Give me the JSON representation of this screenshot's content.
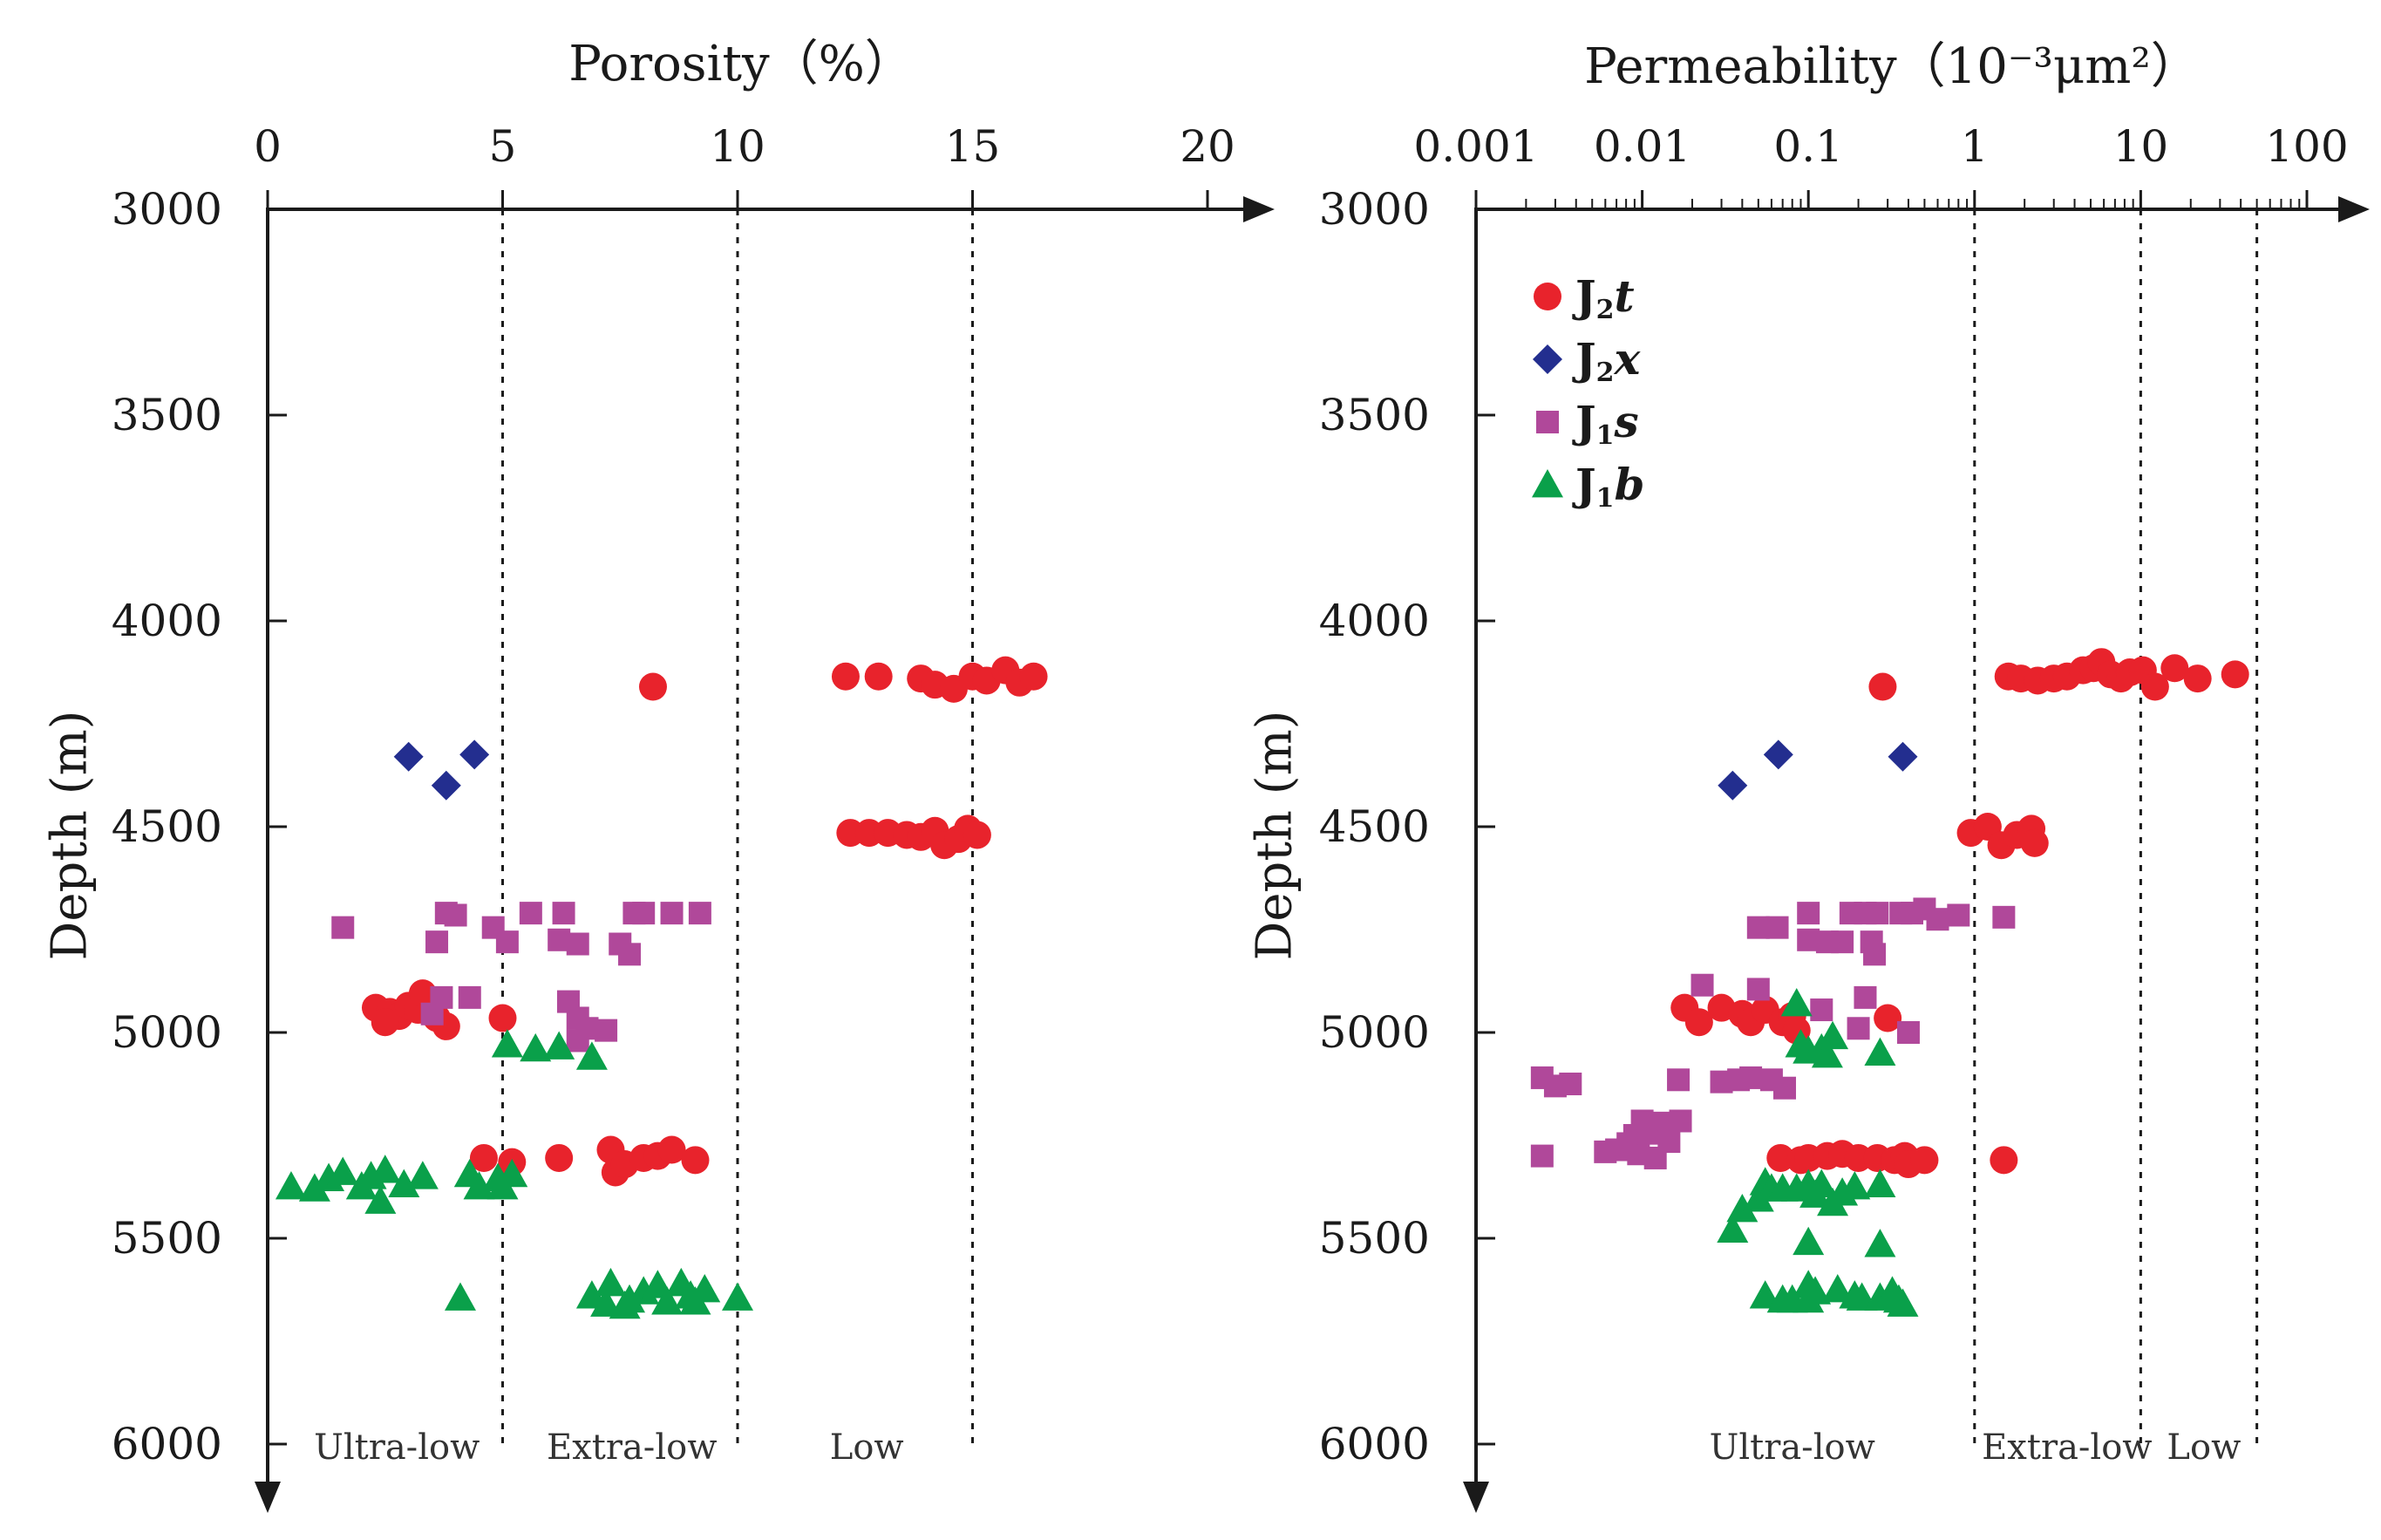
{
  "chart_data": [
    {
      "type": "scatter",
      "id": "porosity",
      "title": "Porosity（%）",
      "xlabel": "Porosity（%）",
      "ylabel": "Depth (m)",
      "xscale": "linear",
      "xlim": [
        0,
        20
      ],
      "ylim": [
        3000,
        6000
      ],
      "yaxis_inverted": true,
      "x_tick_labels": [
        "0",
        "5",
        "10",
        "15",
        "20"
      ],
      "y_tick_labels": [
        "3000",
        "3500",
        "4000",
        "4500",
        "5000",
        "5500",
        "6000"
      ],
      "x_ticks": [
        0,
        5,
        10,
        15,
        20
      ],
      "y_ticks": [
        3000,
        3500,
        4000,
        4500,
        5000,
        5500,
        6000
      ],
      "boundaries": [
        5,
        10,
        15
      ],
      "zones": [
        {
          "label": "Ultra-low",
          "x": 2.75
        },
        {
          "label": "Extra-low",
          "x": 7.75
        },
        {
          "label": "Low",
          "x": 12.75
        }
      ],
      "series": [
        {
          "name": "J2t",
          "marker": "circle",
          "color": "#e8232c",
          "points": [
            [
              8.2,
              4160
            ],
            [
              12.3,
              4135
            ],
            [
              13.0,
              4135
            ],
            [
              13.9,
              4140
            ],
            [
              14.2,
              4155
            ],
            [
              14.6,
              4165
            ],
            [
              15.0,
              4135
            ],
            [
              15.3,
              4145
            ],
            [
              15.7,
              4120
            ],
            [
              16.0,
              4150
            ],
            [
              16.3,
              4135
            ],
            [
              12.4,
              4515
            ],
            [
              12.8,
              4515
            ],
            [
              13.2,
              4515
            ],
            [
              13.6,
              4520
            ],
            [
              13.9,
              4525
            ],
            [
              14.2,
              4510
            ],
            [
              14.4,
              4545
            ],
            [
              14.7,
              4530
            ],
            [
              14.9,
              4505
            ],
            [
              15.1,
              4520
            ],
            [
              2.3,
              4940
            ],
            [
              2.6,
              4950
            ],
            [
              2.8,
              4960
            ],
            [
              3.0,
              4935
            ],
            [
              3.2,
              4945
            ],
            [
              3.3,
              4905
            ],
            [
              3.6,
              4965
            ],
            [
              3.8,
              4985
            ],
            [
              2.5,
              4975
            ],
            [
              5.0,
              4965
            ],
            [
              4.6,
              5305
            ],
            [
              5.2,
              5315
            ],
            [
              6.2,
              5305
            ],
            [
              7.3,
              5285
            ],
            [
              7.4,
              5340
            ],
            [
              7.6,
              5320
            ],
            [
              8.0,
              5305
            ],
            [
              8.3,
              5300
            ],
            [
              8.6,
              5285
            ],
            [
              9.1,
              5310
            ]
          ]
        },
        {
          "name": "J2x",
          "marker": "diamond",
          "color": "#232e8f",
          "points": [
            [
              3.0,
              4330
            ],
            [
              4.4,
              4325
            ],
            [
              3.8,
              4400
            ]
          ]
        },
        {
          "name": "J1s",
          "marker": "square",
          "color": "#b0489a",
          "points": [
            [
              1.6,
              4745
            ],
            [
              3.6,
              4780
            ],
            [
              3.8,
              4710
            ],
            [
              4.0,
              4715
            ],
            [
              4.8,
              4745
            ],
            [
              5.1,
              4780
            ],
            [
              5.6,
              4710
            ],
            [
              6.3,
              4710
            ],
            [
              6.2,
              4775
            ],
            [
              6.6,
              4785
            ],
            [
              7.5,
              4785
            ],
            [
              7.7,
              4810
            ],
            [
              7.8,
              4710
            ],
            [
              8.0,
              4710
            ],
            [
              8.6,
              4710
            ],
            [
              9.2,
              4710
            ],
            [
              3.7,
              4915
            ],
            [
              4.3,
              4915
            ],
            [
              6.4,
              4925
            ],
            [
              6.6,
              4965
            ],
            [
              6.8,
              4990
            ],
            [
              7.2,
              4995
            ],
            [
              3.5,
              4955
            ],
            [
              6.6,
              5020
            ]
          ]
        },
        {
          "name": "J1b",
          "marker": "triangle",
          "color": "#0aa04a",
          "points": [
            [
              0.5,
              5375
            ],
            [
              1.0,
              5380
            ],
            [
              1.3,
              5355
            ],
            [
              1.6,
              5340
            ],
            [
              2.0,
              5375
            ],
            [
              2.2,
              5350
            ],
            [
              2.5,
              5335
            ],
            [
              2.4,
              5410
            ],
            [
              2.9,
              5370
            ],
            [
              3.3,
              5350
            ],
            [
              4.3,
              5345
            ],
            [
              4.5,
              5375
            ],
            [
              4.9,
              5355
            ],
            [
              5.0,
              5375
            ],
            [
              5.2,
              5345
            ],
            [
              5.1,
              5030
            ],
            [
              5.7,
              5040
            ],
            [
              6.2,
              5035
            ],
            [
              6.9,
              5060
            ],
            [
              4.1,
              5645
            ],
            [
              6.9,
              5640
            ],
            [
              7.2,
              5660
            ],
            [
              7.3,
              5610
            ],
            [
              7.7,
              5650
            ],
            [
              8.0,
              5630
            ],
            [
              8.3,
              5615
            ],
            [
              8.5,
              5655
            ],
            [
              8.8,
              5610
            ],
            [
              9.0,
              5640
            ],
            [
              9.3,
              5625
            ],
            [
              9.1,
              5655
            ],
            [
              10.0,
              5645
            ],
            [
              7.6,
              5665
            ]
          ]
        }
      ]
    },
    {
      "type": "scatter",
      "id": "permeability",
      "title": "Permeability（10⁻³μm²）",
      "xlabel": "Permeability（10⁻³μm²）",
      "ylabel": "Depth (m)",
      "xscale": "log",
      "xlim": [
        0.001,
        100
      ],
      "ylim": [
        3000,
        6000
      ],
      "yaxis_inverted": true,
      "x_tick_labels": [
        "0.001",
        "0.01",
        "0.1",
        "1",
        "10",
        "100"
      ],
      "y_tick_labels": [
        "3000",
        "3500",
        "4000",
        "4500",
        "5000",
        "5500",
        "6000"
      ],
      "x_ticks": [
        0.001,
        0.01,
        0.1,
        1,
        10,
        100
      ],
      "y_ticks": [
        3000,
        3500,
        4000,
        4500,
        5000,
        5500,
        6000
      ],
      "boundaries": [
        1,
        10,
        50
      ],
      "zones": [
        {
          "label": "Ultra-low",
          "x": 0.08
        },
        {
          "label": "Extra-low",
          "x": 3.6
        },
        {
          "label": "Low",
          "x": 24
        }
      ],
      "legend": {
        "position": "upper-left",
        "entries": [
          {
            "series": "J2t",
            "main": "J",
            "sub": "2",
            "suffix": "t"
          },
          {
            "series": "J2x",
            "main": "J",
            "sub": "2",
            "suffix": "x"
          },
          {
            "series": "J1s",
            "main": "J",
            "sub": "1",
            "suffix": "s"
          },
          {
            "series": "J1b",
            "main": "J",
            "sub": "1",
            "suffix": "b"
          }
        ]
      },
      "series": [
        {
          "name": "J2t",
          "marker": "circle",
          "color": "#e8232c",
          "points": [
            [
              0.28,
              4160
            ],
            [
              1.6,
              4135
            ],
            [
              1.9,
              4140
            ],
            [
              2.4,
              4145
            ],
            [
              3.0,
              4140
            ],
            [
              3.6,
              4135
            ],
            [
              4.5,
              4120
            ],
            [
              5.2,
              4115
            ],
            [
              5.8,
              4100
            ],
            [
              6.6,
              4130
            ],
            [
              7.6,
              4140
            ],
            [
              8.6,
              4125
            ],
            [
              10.3,
              4120
            ],
            [
              12.2,
              4160
            ],
            [
              16,
              4115
            ],
            [
              22,
              4140
            ],
            [
              37,
              4130
            ],
            [
              0.95,
              4515
            ],
            [
              1.2,
              4500
            ],
            [
              1.45,
              4545
            ],
            [
              1.8,
              4520
            ],
            [
              2.2,
              4505
            ],
            [
              2.3,
              4540
            ],
            [
              0.018,
              4940
            ],
            [
              0.022,
              4975
            ],
            [
              0.03,
              4940
            ],
            [
              0.04,
              4955
            ],
            [
              0.045,
              4975
            ],
            [
              0.055,
              4945
            ],
            [
              0.07,
              4975
            ],
            [
              0.08,
              4960
            ],
            [
              0.085,
              4995
            ],
            [
              0.3,
              4965
            ],
            [
              0.068,
              5305
            ],
            [
              0.09,
              5310
            ],
            [
              0.1,
              5305
            ],
            [
              0.13,
              5300
            ],
            [
              0.16,
              5295
            ],
            [
              0.2,
              5305
            ],
            [
              0.26,
              5305
            ],
            [
              0.33,
              5310
            ],
            [
              0.38,
              5300
            ],
            [
              0.4,
              5320
            ],
            [
              0.5,
              5310
            ],
            [
              1.5,
              5310
            ]
          ]
        },
        {
          "name": "J2x",
          "marker": "diamond",
          "color": "#232e8f",
          "points": [
            [
              0.066,
              4325
            ],
            [
              0.37,
              4330
            ],
            [
              0.035,
              4400
            ]
          ]
        },
        {
          "name": "J1s",
          "marker": "square",
          "color": "#b0489a",
          "points": [
            [
              0.0025,
              5110
            ],
            [
              0.003,
              5130
            ],
            [
              0.0037,
              5125
            ],
            [
              0.0025,
              5300
            ],
            [
              0.006,
              5290
            ],
            [
              0.007,
              5285
            ],
            [
              0.0082,
              5270
            ],
            [
              0.009,
              5250
            ],
            [
              0.0095,
              5295
            ],
            [
              0.01,
              5215
            ],
            [
              0.011,
              5245
            ],
            [
              0.012,
              5305
            ],
            [
              0.013,
              5220
            ],
            [
              0.0145,
              5265
            ],
            [
              0.0165,
              5115
            ],
            [
              0.017,
              5215
            ],
            [
              0.03,
              5120
            ],
            [
              0.038,
              5115
            ],
            [
              0.045,
              5110
            ],
            [
              0.06,
              5115
            ],
            [
              0.072,
              5135
            ],
            [
              0.05,
              4745
            ],
            [
              0.065,
              4745
            ],
            [
              0.1,
              4710
            ],
            [
              0.1,
              4775
            ],
            [
              0.13,
              4780
            ],
            [
              0.16,
              4780
            ],
            [
              0.18,
              4710
            ],
            [
              0.22,
              4710
            ],
            [
              0.26,
              4710
            ],
            [
              0.24,
              4780
            ],
            [
              0.25,
              4810
            ],
            [
              0.36,
              4710
            ],
            [
              0.42,
              4710
            ],
            [
              0.5,
              4700
            ],
            [
              0.6,
              4725
            ],
            [
              0.8,
              4715
            ],
            [
              1.5,
              4720
            ],
            [
              0.023,
              4885
            ],
            [
              0.05,
              4895
            ],
            [
              0.12,
              4945
            ],
            [
              0.2,
              4990
            ],
            [
              0.22,
              4915
            ],
            [
              0.4,
              5000
            ]
          ]
        },
        {
          "name": "J1b",
          "marker": "triangle",
          "color": "#0aa04a",
          "points": [
            [
              0.085,
              4930
            ],
            [
              0.09,
              5030
            ],
            [
              0.1,
              5045
            ],
            [
              0.12,
              5040
            ],
            [
              0.13,
              5055
            ],
            [
              0.14,
              5010
            ],
            [
              0.27,
              5050
            ],
            [
              0.035,
              5480
            ],
            [
              0.04,
              5430
            ],
            [
              0.05,
              5405
            ],
            [
              0.055,
              5365
            ],
            [
              0.06,
              5380
            ],
            [
              0.07,
              5380
            ],
            [
              0.085,
              5380
            ],
            [
              0.1,
              5370
            ],
            [
              0.11,
              5395
            ],
            [
              0.12,
              5370
            ],
            [
              0.14,
              5415
            ],
            [
              0.16,
              5390
            ],
            [
              0.19,
              5375
            ],
            [
              0.27,
              5370
            ],
            [
              0.1,
              5510
            ],
            [
              0.27,
              5515
            ],
            [
              0.055,
              5640
            ],
            [
              0.07,
              5650
            ],
            [
              0.08,
              5650
            ],
            [
              0.1,
              5615
            ],
            [
              0.1,
              5650
            ],
            [
              0.11,
              5630
            ],
            [
              0.15,
              5625
            ],
            [
              0.19,
              5640
            ],
            [
              0.21,
              5645
            ],
            [
              0.27,
              5645
            ],
            [
              0.32,
              5630
            ],
            [
              0.35,
              5650
            ],
            [
              0.37,
              5660
            ]
          ]
        }
      ]
    }
  ]
}
